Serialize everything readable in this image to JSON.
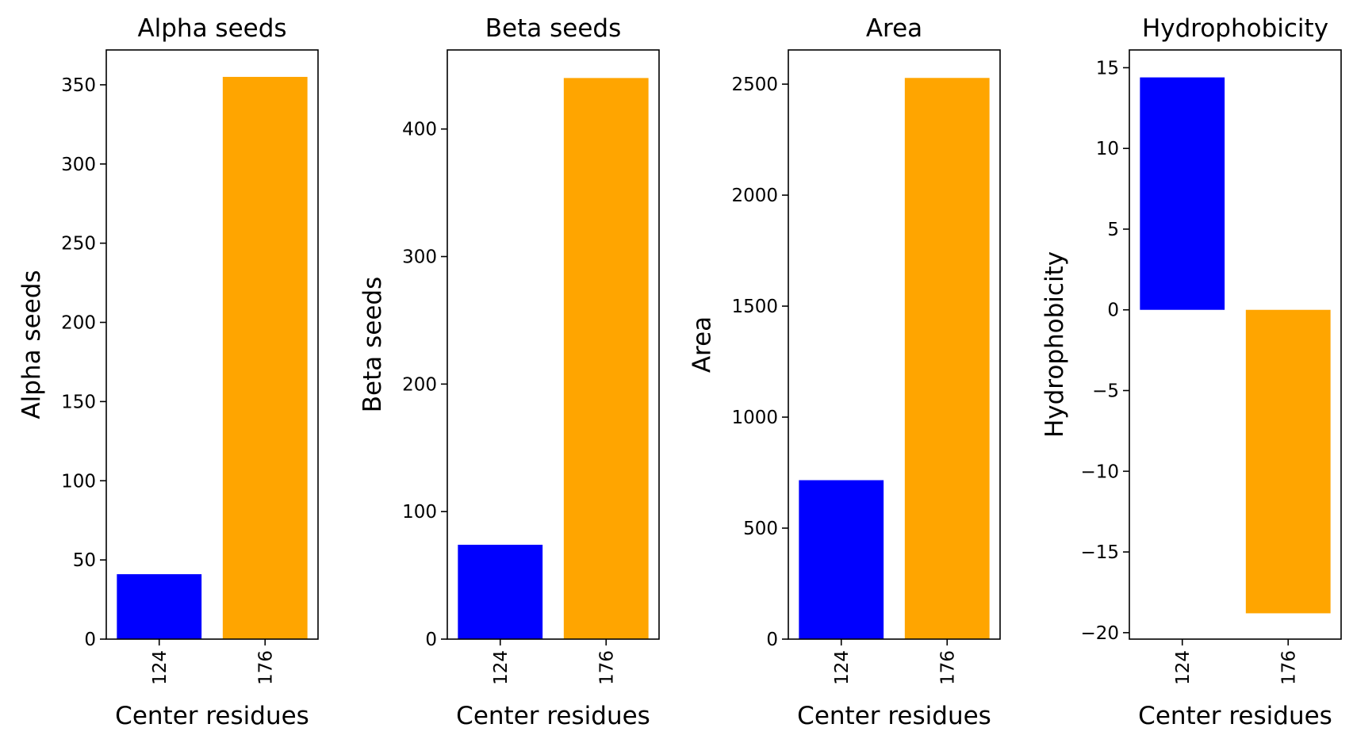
{
  "chart_data": [
    {
      "type": "bar",
      "title": "Alpha seeds",
      "xlabel": "Center residues",
      "ylabel": "Alpha seeds",
      "categories": [
        "124",
        "176"
      ],
      "values": [
        41,
        355
      ],
      "colors": [
        "#0000ff",
        "#ffa500"
      ],
      "ylim": [
        0,
        372
      ],
      "yticks": [
        "0",
        "50",
        "100",
        "150",
        "200",
        "250",
        "300",
        "350"
      ],
      "grid": false
    },
    {
      "type": "bar",
      "title": "Beta seeds",
      "xlabel": "Center residues",
      "ylabel": "Beta seeds",
      "categories": [
        "124",
        "176"
      ],
      "values": [
        74,
        440
      ],
      "colors": [
        "#0000ff",
        "#ffa500"
      ],
      "ylim": [
        0,
        462
      ],
      "yticks": [
        "0",
        "100",
        "200",
        "300",
        "400"
      ],
      "grid": false
    },
    {
      "type": "bar",
      "title": "Area",
      "xlabel": "Center residues",
      "ylabel": "Area",
      "categories": [
        "124",
        "176"
      ],
      "values": [
        716,
        2528
      ],
      "colors": [
        "#0000ff",
        "#ffa500"
      ],
      "ylim": [
        0,
        2654
      ],
      "yticks": [
        "0",
        "500",
        "1000",
        "1500",
        "2000",
        "2500"
      ],
      "grid": false
    },
    {
      "type": "bar",
      "title": "Hydrophobicity",
      "xlabel": "Center residues",
      "ylabel": "Hydrophobicity",
      "categories": [
        "124",
        "176"
      ],
      "values": [
        14.4,
        -18.8
      ],
      "colors": [
        "#0000ff",
        "#ffa500"
      ],
      "ylim": [
        -20.4,
        16.1
      ],
      "yticks": [
        "15",
        "10",
        "5",
        "0",
        "−5",
        "−10",
        "−15",
        "−20"
      ],
      "grid": false
    }
  ]
}
